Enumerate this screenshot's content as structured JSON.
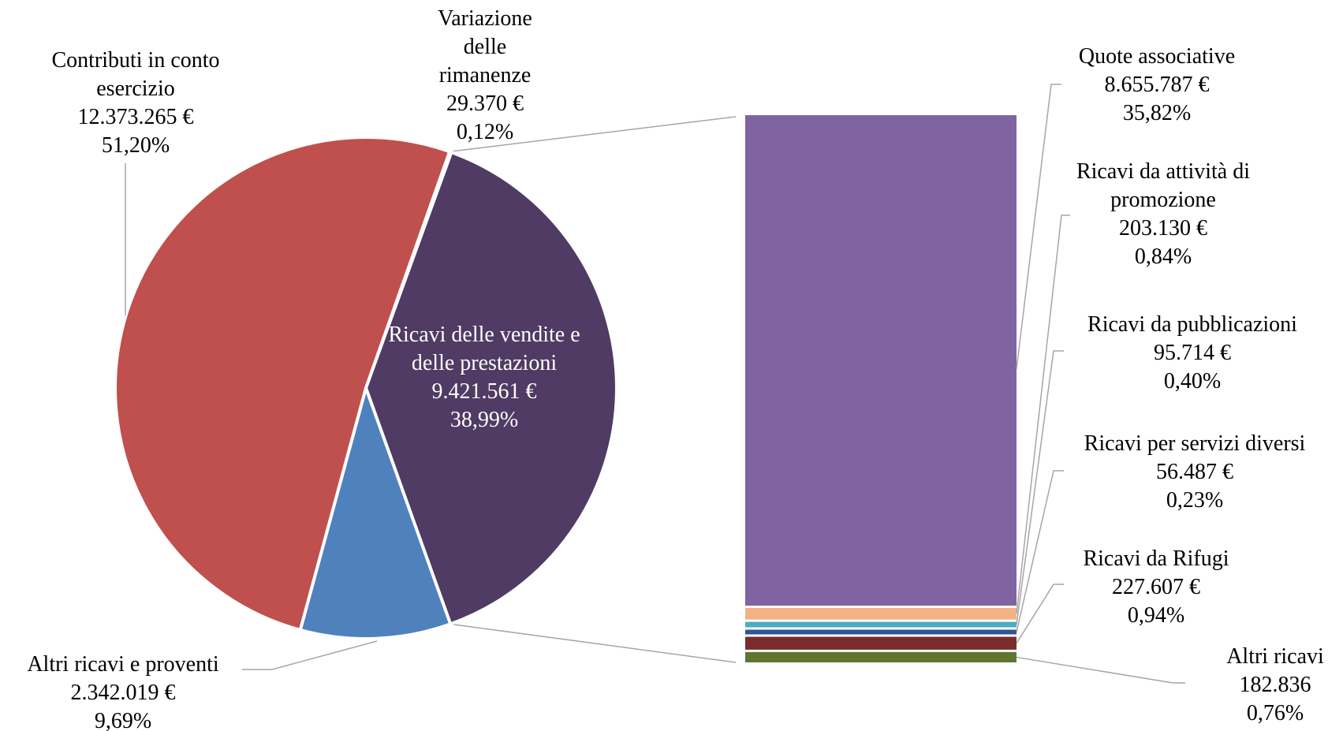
{
  "chart_data": {
    "type": "bar-of-pie",
    "title": "",
    "colors": {
      "contributi": "#c0504d",
      "ricavi_vendite": "#4f3b63",
      "altri_ricavi_proventi": "#4f81bd",
      "variazione": "#f79646",
      "quote": "#8064a2",
      "promozione": "#f4b183",
      "pubblicazioni": "#4bacc6",
      "servizi": "#2f5597",
      "rifugi": "#7b2c2c",
      "altri_ricavi": "#5f7530"
    },
    "pie": [
      {
        "key": "contributi",
        "lines": [
          "Contributi in conto",
          "esercizio"
        ],
        "value": 12373265,
        "value_label": "12.373.265 €",
        "pct_label": "51,20%",
        "percent": 51.2
      },
      {
        "key": "variazione",
        "lines": [
          "Variazione",
          "delle",
          "rimanenze"
        ],
        "value": 29370,
        "value_label": "29.370 €",
        "pct_label": "0,12%",
        "percent": 0.12
      },
      {
        "key": "ricavi_vendite",
        "lines": [
          "Ricavi delle vendite e",
          "delle prestazioni"
        ],
        "value": 9421561,
        "value_label": "9.421.561 €",
        "pct_label": "38,99%",
        "percent": 38.99
      },
      {
        "key": "altri_ricavi_proventi",
        "lines": [
          "Altri ricavi e proventi"
        ],
        "value": 2342019,
        "value_label": "2.342.019 €",
        "pct_label": "9,69%",
        "percent": 9.69
      }
    ],
    "bar": [
      {
        "key": "quote",
        "lines": [
          "Quote associative"
        ],
        "value": 8655787,
        "value_label": "8.655.787 €",
        "pct_label": "35,82%",
        "percent": 35.82
      },
      {
        "key": "promozione",
        "lines": [
          "Ricavi da attività di",
          "promozione"
        ],
        "value": 203130,
        "value_label": "203.130 €",
        "pct_label": "0,84%",
        "percent": 0.84
      },
      {
        "key": "pubblicazioni",
        "lines": [
          "Ricavi da pubblicazioni"
        ],
        "value": 95714,
        "value_label": "95.714 €",
        "pct_label": "0,40%",
        "percent": 0.4
      },
      {
        "key": "servizi",
        "lines": [
          "Ricavi per servizi diversi"
        ],
        "value": 56487,
        "value_label": "56.487 €",
        "pct_label": "0,23%",
        "percent": 0.23
      },
      {
        "key": "rifugi",
        "lines": [
          "Ricavi da Rifugi"
        ],
        "value": 227607,
        "value_label": "227.607 €",
        "pct_label": "0,94%",
        "percent": 0.94
      },
      {
        "key": "altri_ricavi",
        "lines": [
          "Altri ricavi"
        ],
        "value": 182836,
        "value_label": "182.836",
        "pct_label": "0,76%",
        "percent": 0.76
      }
    ]
  }
}
